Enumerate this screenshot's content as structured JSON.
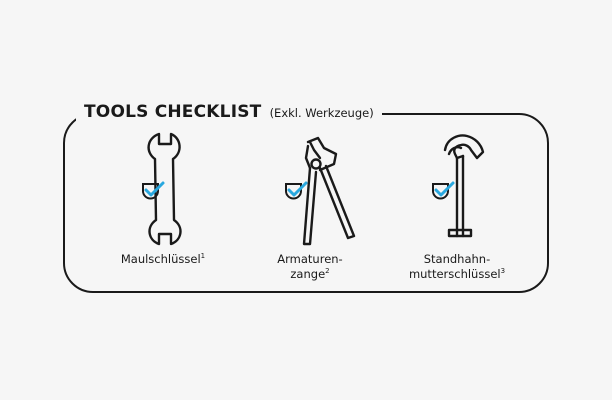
{
  "checklist": {
    "title": "TOOLS CHECKLIST",
    "subtitle": "(Exkl. Werkzeuge)",
    "tools": [
      {
        "icon": "open-end-wrench-icon",
        "label_lines": [
          "Maulschlüssel"
        ],
        "footnote": "1",
        "checked": true
      },
      {
        "icon": "water-pump-pliers-icon",
        "label_lines": [
          "Armaturen-",
          "zange"
        ],
        "footnote": "2",
        "checked": true
      },
      {
        "icon": "stand-valve-key-icon",
        "label_lines": [
          "Standhahn-",
          "mutterschlüssel"
        ],
        "footnote": "3",
        "checked": true
      }
    ],
    "colors": {
      "stroke": "#1a1a1a",
      "check": "#29a8df",
      "background": "#f6f6f6"
    }
  }
}
